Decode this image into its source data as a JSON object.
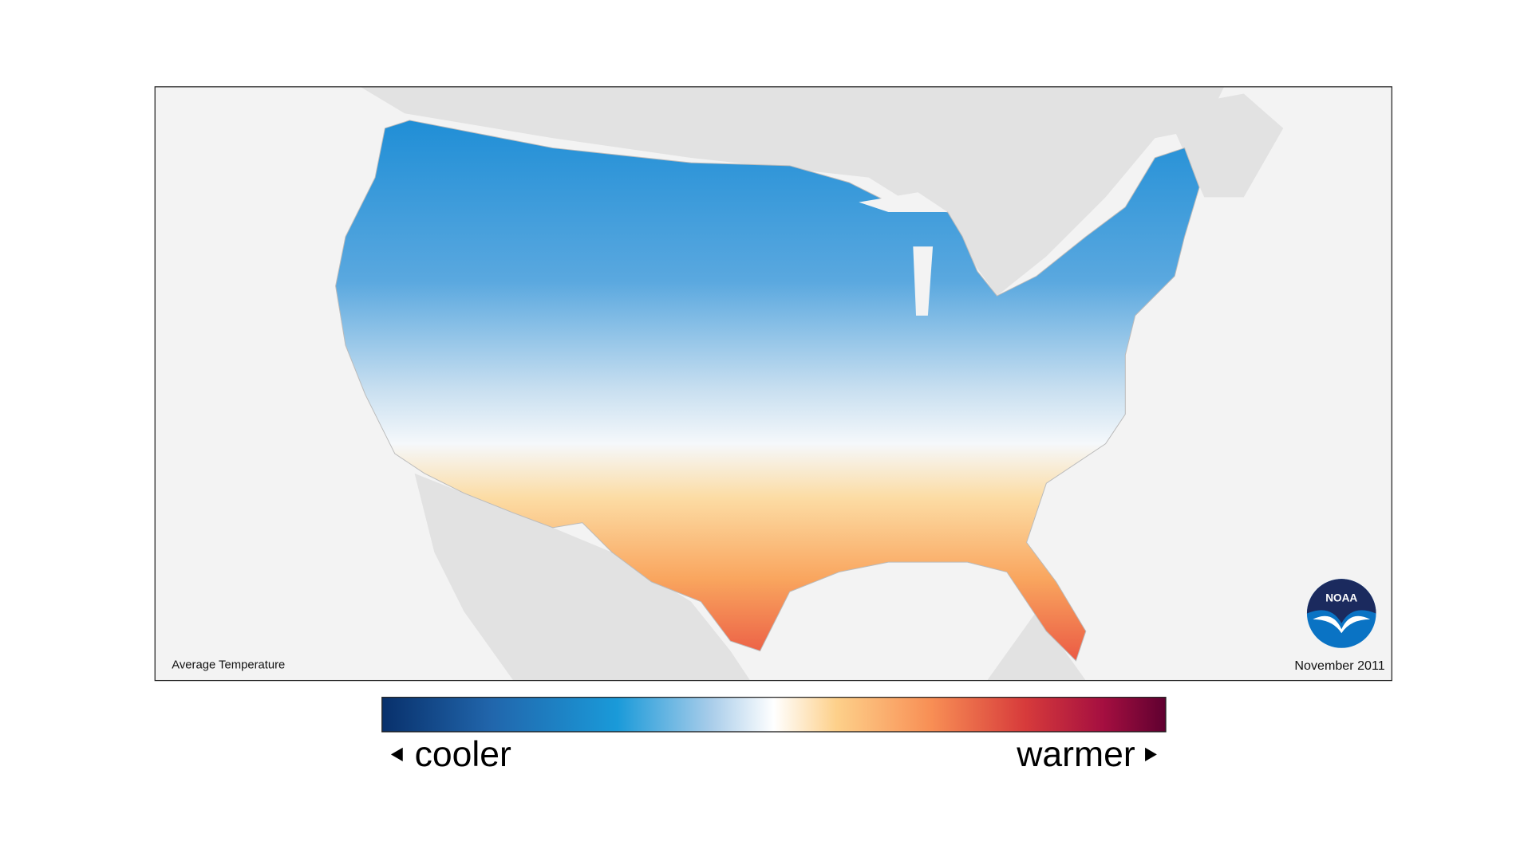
{
  "map": {
    "label": "Average Temperature",
    "date": "November 2011"
  },
  "legend": {
    "low": "cooler",
    "high": "warmer"
  },
  "logo": {
    "text": "NOAA"
  }
}
